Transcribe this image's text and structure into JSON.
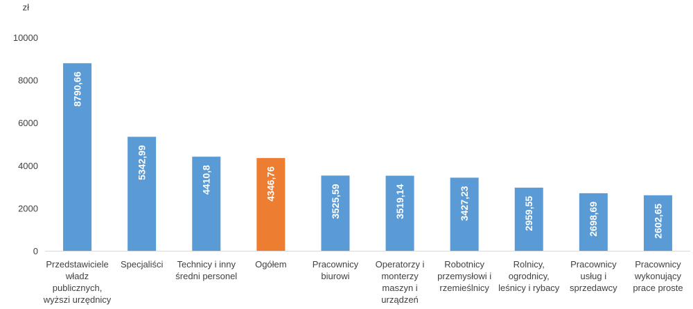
{
  "chart_data": {
    "type": "bar",
    "unit_label": "zł",
    "categories": [
      [
        "Przedstawiciele",
        "władz",
        "publicznych,",
        "wyższi urzędnicy"
      ],
      [
        "Specjaliści"
      ],
      [
        "Technicy i inny",
        "średni personel"
      ],
      [
        "Ogółem"
      ],
      [
        "Pracownicy",
        "biurowi"
      ],
      [
        "Operatorzy i",
        "monterzy",
        "maszyn i",
        "urządzeń"
      ],
      [
        "Robotnicy",
        "przemysłowi i",
        "rzemieślnicy"
      ],
      [
        "Rolnicy,",
        "ogrodnicy,",
        "leśnicy i rybacy"
      ],
      [
        "Pracownicy",
        "usług i",
        "sprzedawcy"
      ],
      [
        "Pracownicy",
        "wykonujący",
        "prace proste"
      ]
    ],
    "values": [
      8790.66,
      5342.99,
      4410.8,
      4346.76,
      3525.59,
      3519.14,
      3427.23,
      2959.55,
      2698.69,
      2602.65
    ],
    "value_labels": [
      "8790,66",
      "5342,99",
      "4410,8",
      "4346,76",
      "3525,59",
      "3519,14",
      "3427,23",
      "2959,55",
      "2698,69",
      "2602,65"
    ],
    "highlight_index": 3,
    "colors": {
      "default": "#5B9BD5",
      "highlight": "#ED7D31",
      "axis": "#D9D9D9",
      "text": "#404040"
    },
    "ylim": [
      0,
      10000
    ],
    "yticks": [
      0,
      2000,
      4000,
      6000,
      8000,
      10000
    ],
    "grid": false,
    "legend": "none",
    "title": "",
    "xlabel": "",
    "ylabel": ""
  }
}
